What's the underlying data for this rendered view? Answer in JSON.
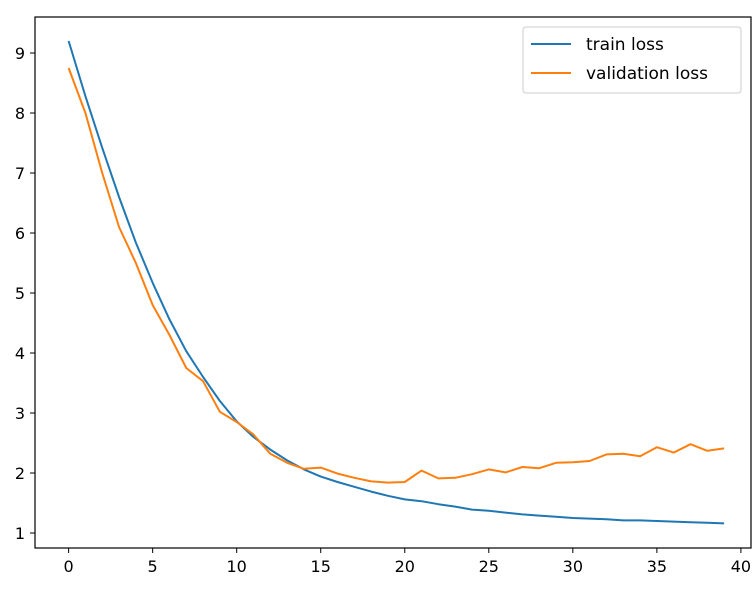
{
  "chart_data": {
    "type": "line",
    "title": "",
    "xlabel": "",
    "ylabel": "",
    "xlim": [
      -2,
      40.6
    ],
    "ylim": [
      0.75,
      9.6
    ],
    "xticks": [
      0,
      5,
      10,
      15,
      20,
      25,
      30,
      35,
      40
    ],
    "yticks": [
      1,
      2,
      3,
      4,
      5,
      6,
      7,
      8,
      9
    ],
    "grid": false,
    "legend_position": "top-right",
    "x": [
      0,
      1,
      2,
      3,
      4,
      5,
      6,
      7,
      8,
      9,
      10,
      11,
      12,
      13,
      14,
      15,
      16,
      17,
      18,
      19,
      20,
      21,
      22,
      23,
      24,
      25,
      26,
      27,
      28,
      29,
      30,
      31,
      32,
      33,
      34,
      35,
      36,
      37,
      38,
      39
    ],
    "series": [
      {
        "name": "train loss",
        "color": "#1f77b4",
        "values": [
          9.2,
          8.28,
          7.42,
          6.6,
          5.84,
          5.17,
          4.56,
          4.03,
          3.6,
          3.2,
          2.86,
          2.6,
          2.39,
          2.21,
          2.06,
          1.94,
          1.85,
          1.77,
          1.69,
          1.62,
          1.56,
          1.53,
          1.48,
          1.44,
          1.39,
          1.37,
          1.34,
          1.31,
          1.29,
          1.27,
          1.25,
          1.24,
          1.23,
          1.21,
          1.21,
          1.2,
          1.19,
          1.18,
          1.17,
          1.16
        ]
      },
      {
        "name": "validation loss",
        "color": "#ff7f0e",
        "values": [
          8.75,
          8.0,
          7.0,
          6.1,
          5.5,
          4.8,
          4.3,
          3.75,
          3.53,
          3.02,
          2.85,
          2.64,
          2.32,
          2.17,
          2.07,
          2.09,
          1.99,
          1.92,
          1.86,
          1.84,
          1.85,
          2.04,
          1.91,
          1.92,
          1.98,
          2.06,
          2.01,
          2.1,
          2.08,
          2.17,
          2.18,
          2.2,
          2.31,
          2.32,
          2.28,
          2.43,
          2.34,
          2.48,
          2.37,
          2.41
        ]
      }
    ]
  }
}
